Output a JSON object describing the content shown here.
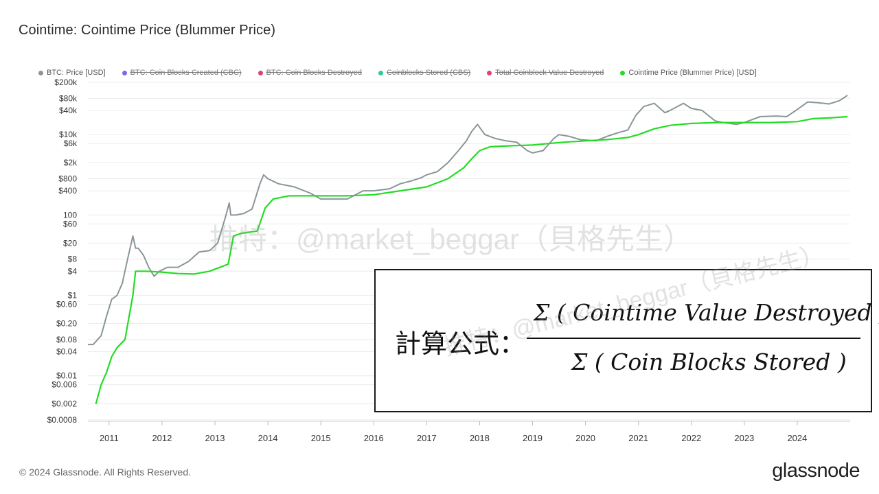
{
  "title": "Cointime: Cointime Price (Blummer Price)",
  "legend": [
    {
      "label": "BTC: Price [USD]",
      "color": "#8a9599",
      "active": true
    },
    {
      "label": "BTC: Coin Blocks Created (CBC)",
      "color": "#7b68ee",
      "active": false
    },
    {
      "label": "BTC: Coin Blocks Destroyed",
      "color": "#e0426b",
      "active": false
    },
    {
      "label": "Coinblocks Stored (CBS)",
      "color": "#2ecc9a",
      "active": false
    },
    {
      "label": "Total Coinblock Value Destroyed",
      "color": "#e0426b",
      "active": false
    },
    {
      "label": "Cointime Price (Blummer Price) [USD]",
      "color": "#22dd22",
      "active": true
    }
  ],
  "footer": "© 2024 Glassnode. All Rights Reserved.",
  "brand": "glassnode",
  "watermark": "推特：@market_beggar（貝格先生）",
  "formula": {
    "label": "計算公式：",
    "numerator": "Σ ( Cointime Value Destroyed )",
    "denominator": "Σ ( Coin Blocks Stored )"
  },
  "chart_data": {
    "type": "line",
    "title": "Cointime: Cointime Price (Blummer Price)",
    "y_scale": "log",
    "ylim": [
      0.0008,
      200000
    ],
    "xlim": [
      2010.6,
      2025.0
    ],
    "y_ticks": [
      {
        "label": "$200k",
        "value": 200000
      },
      {
        "label": "$80k",
        "value": 80000
      },
      {
        "label": "$40k",
        "value": 40000
      },
      {
        "label": "$10k",
        "value": 10000
      },
      {
        "label": "$6k",
        "value": 6000
      },
      {
        "label": "$2k",
        "value": 2000
      },
      {
        "label": "$800",
        "value": 800
      },
      {
        "label": "$400",
        "value": 400
      },
      {
        "label": "100",
        "value": 100
      },
      {
        "label": "$60",
        "value": 60
      },
      {
        "label": "$20",
        "value": 20
      },
      {
        "label": "$8",
        "value": 8
      },
      {
        "label": "$4",
        "value": 4
      },
      {
        "label": "$1",
        "value": 1
      },
      {
        "label": "$0.60",
        "value": 0.6
      },
      {
        "label": "$0.20",
        "value": 0.2
      },
      {
        "label": "$0.08",
        "value": 0.08
      },
      {
        "label": "$0.04",
        "value": 0.04
      },
      {
        "label": "$0.01",
        "value": 0.01
      },
      {
        "label": "$0.006",
        "value": 0.006
      },
      {
        "label": "$0.002",
        "value": 0.002
      },
      {
        "label": "$0.0008",
        "value": 0.0008
      }
    ],
    "x_ticks": [
      "2011",
      "2012",
      "2013",
      "2014",
      "2015",
      "2016",
      "2017",
      "2018",
      "2019",
      "2020",
      "2021",
      "2022",
      "2023",
      "2024"
    ],
    "grid": true,
    "legend_position": "top",
    "series": [
      {
        "name": "BTC: Price [USD]",
        "color": "#8a9599",
        "x": [
          2010.6,
          2010.7,
          2010.85,
          2010.95,
          2011.05,
          2011.15,
          2011.25,
          2011.35,
          2011.45,
          2011.5,
          2011.55,
          2011.65,
          2011.75,
          2011.85,
          2011.95,
          2012.1,
          2012.3,
          2012.5,
          2012.7,
          2012.9,
          2013.05,
          2013.2,
          2013.27,
          2013.3,
          2013.4,
          2013.55,
          2013.7,
          2013.85,
          2013.92,
          2014.0,
          2014.2,
          2014.5,
          2014.8,
          2015.0,
          2015.2,
          2015.5,
          2015.8,
          2016.0,
          2016.3,
          2016.5,
          2016.7,
          2016.9,
          2017.0,
          2017.2,
          2017.4,
          2017.6,
          2017.75,
          2017.85,
          2017.96,
          2018.1,
          2018.3,
          2018.5,
          2018.7,
          2018.9,
          2019.0,
          2019.2,
          2019.4,
          2019.5,
          2019.7,
          2019.9,
          2020.2,
          2020.4,
          2020.6,
          2020.8,
          2020.95,
          2021.1,
          2021.3,
          2021.5,
          2021.6,
          2021.85,
          2022.0,
          2022.2,
          2022.45,
          2022.6,
          2022.85,
          2023.0,
          2023.3,
          2023.6,
          2023.8,
          2024.0,
          2024.2,
          2024.4,
          2024.6,
          2024.8,
          2024.95
        ],
        "y": [
          0.06,
          0.06,
          0.1,
          0.3,
          0.8,
          1,
          2,
          8,
          30,
          15,
          15,
          10,
          5,
          3,
          4,
          5,
          5,
          7,
          12,
          13,
          20,
          90,
          200,
          100,
          100,
          110,
          140,
          600,
          1000,
          800,
          600,
          500,
          350,
          250,
          250,
          250,
          400,
          400,
          450,
          600,
          700,
          850,
          1000,
          1200,
          2000,
          4000,
          7000,
          12000,
          18000,
          10000,
          8000,
          7000,
          6500,
          4000,
          3500,
          4000,
          8000,
          10000,
          9000,
          7500,
          7000,
          9000,
          11000,
          13000,
          30000,
          50000,
          60000,
          35000,
          40000,
          60000,
          45000,
          40000,
          22000,
          20000,
          18000,
          20000,
          28000,
          29000,
          28000,
          42000,
          65000,
          62000,
          58000,
          70000,
          95000
        ]
      },
      {
        "name": "Cointime Price (Blummer Price) [USD]",
        "color": "#22dd22",
        "x": [
          2010.75,
          2010.85,
          2010.95,
          2011.05,
          2011.15,
          2011.3,
          2011.45,
          2011.5,
          2011.7,
          2012.0,
          2012.3,
          2012.6,
          2012.9,
          2013.0,
          2013.25,
          2013.35,
          2013.5,
          2013.8,
          2013.95,
          2014.1,
          2014.4,
          2015.0,
          2015.5,
          2016.0,
          2016.5,
          2017.0,
          2017.4,
          2017.7,
          2017.85,
          2018.0,
          2018.2,
          2018.6,
          2019.0,
          2019.3,
          2019.6,
          2020.0,
          2020.4,
          2020.8,
          2021.0,
          2021.3,
          2021.6,
          2022.0,
          2022.5,
          2023.0,
          2023.5,
          2024.0,
          2024.3,
          2024.6,
          2024.95
        ],
        "y": [
          0.002,
          0.006,
          0.012,
          0.03,
          0.05,
          0.08,
          1,
          4,
          4,
          3.8,
          3.5,
          3.4,
          4,
          4.5,
          6,
          30,
          35,
          40,
          150,
          250,
          300,
          300,
          300,
          320,
          400,
          500,
          800,
          1500,
          2500,
          4000,
          5000,
          5300,
          5500,
          6000,
          6500,
          7000,
          7500,
          8500,
          10000,
          14000,
          17000,
          19000,
          20000,
          20000,
          20000,
          21000,
          25000,
          26000,
          28000
        ]
      }
    ]
  }
}
